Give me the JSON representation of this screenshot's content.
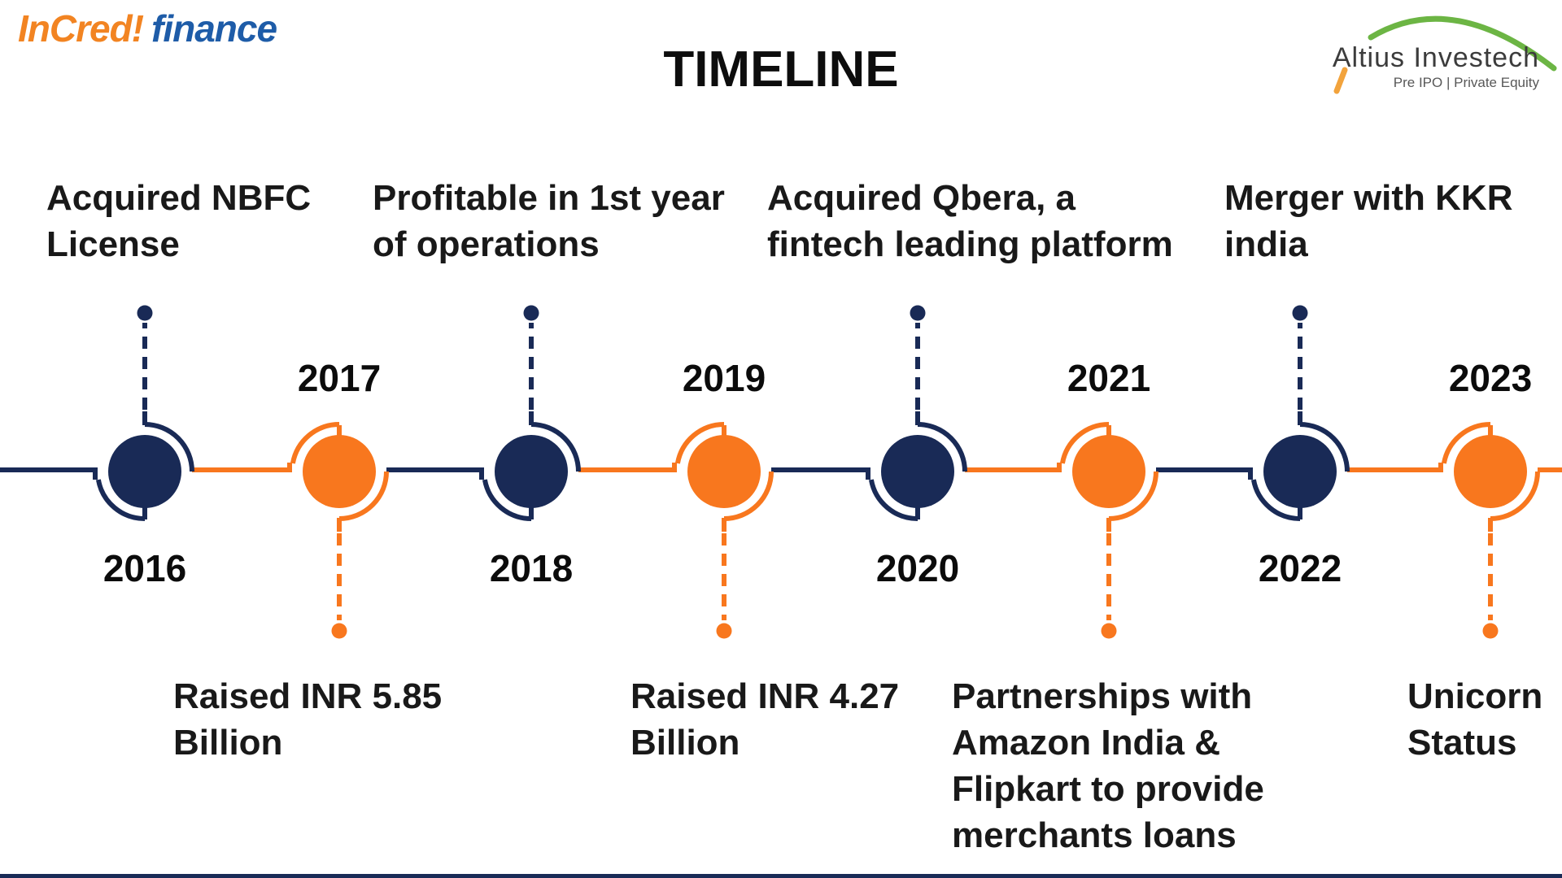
{
  "header": {
    "brand": {
      "wordmark": "InCred",
      "mark": "!",
      "suffix": "finance"
    },
    "title": "TIMELINE",
    "partner": {
      "name": "Altius Investech",
      "tagline": "Pre IPO | Private Equity"
    }
  },
  "colors": {
    "navy": "#192A56",
    "orange": "#F8771E",
    "logo_orange": "#F28422",
    "logo_blue": "#1E5CA8",
    "logo_green": "#6CB544",
    "logo_slash_orange": "#F2A33C",
    "text": "#191919"
  },
  "timeline": {
    "milestones": [
      {
        "year": "2016",
        "color": "navy",
        "desc_lines": [
          "Acquired NBFC",
          "License"
        ]
      },
      {
        "year": "2017",
        "color": "orange",
        "desc_lines": [
          "Raised INR 5.85",
          "Billion"
        ]
      },
      {
        "year": "2018",
        "color": "navy",
        "desc_lines": [
          "Profitable in 1st year",
          "of operations"
        ]
      },
      {
        "year": "2019",
        "color": "orange",
        "desc_lines": [
          "Raised INR 4.27",
          "Billion"
        ]
      },
      {
        "year": "2020",
        "color": "navy",
        "desc_lines": [
          "Acquired Qbera, a",
          "fintech leading platform"
        ]
      },
      {
        "year": "2021",
        "color": "orange",
        "desc_lines": [
          "Partnerships with",
          "Amazon India &",
          "Flipkart to provide",
          "merchants loans"
        ]
      },
      {
        "year": "2022",
        "color": "navy",
        "desc_lines": [
          "Merger with KKR",
          "india"
        ]
      },
      {
        "year": "2023",
        "color": "orange",
        "desc_lines": [
          "Unicorn",
          "Status"
        ]
      }
    ]
  }
}
